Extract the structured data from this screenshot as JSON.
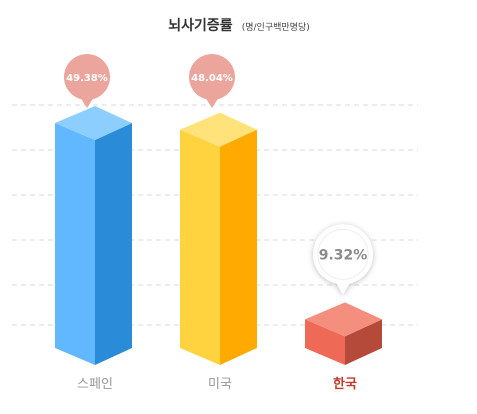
{
  "chart_data": {
    "type": "bar",
    "title": "뇌사기증률",
    "subtitle": "(명/인구백만명당)",
    "categories": [
      "스페인",
      "미국",
      "한국"
    ],
    "values": [
      49.38,
      48.04,
      9.32
    ],
    "value_labels": [
      "49.38%",
      "48.04%",
      "9.32%"
    ],
    "ylim": [
      0,
      55
    ],
    "grid": true,
    "highlight": "한국",
    "colors": {
      "bar_front": [
        "#62b8ff",
        "#ffd23f",
        "#ef6a56"
      ],
      "bar_side": [
        "#2a8bd8",
        "#ffaa00",
        "#b5493a"
      ],
      "bar_top": [
        "#8ccfff",
        "#ffe27a",
        "#f48e7d"
      ],
      "label": [
        "#999999",
        "#999999",
        "#c0392b"
      ],
      "bubble": "#eba59c",
      "grid": "#d9d9d9"
    }
  }
}
